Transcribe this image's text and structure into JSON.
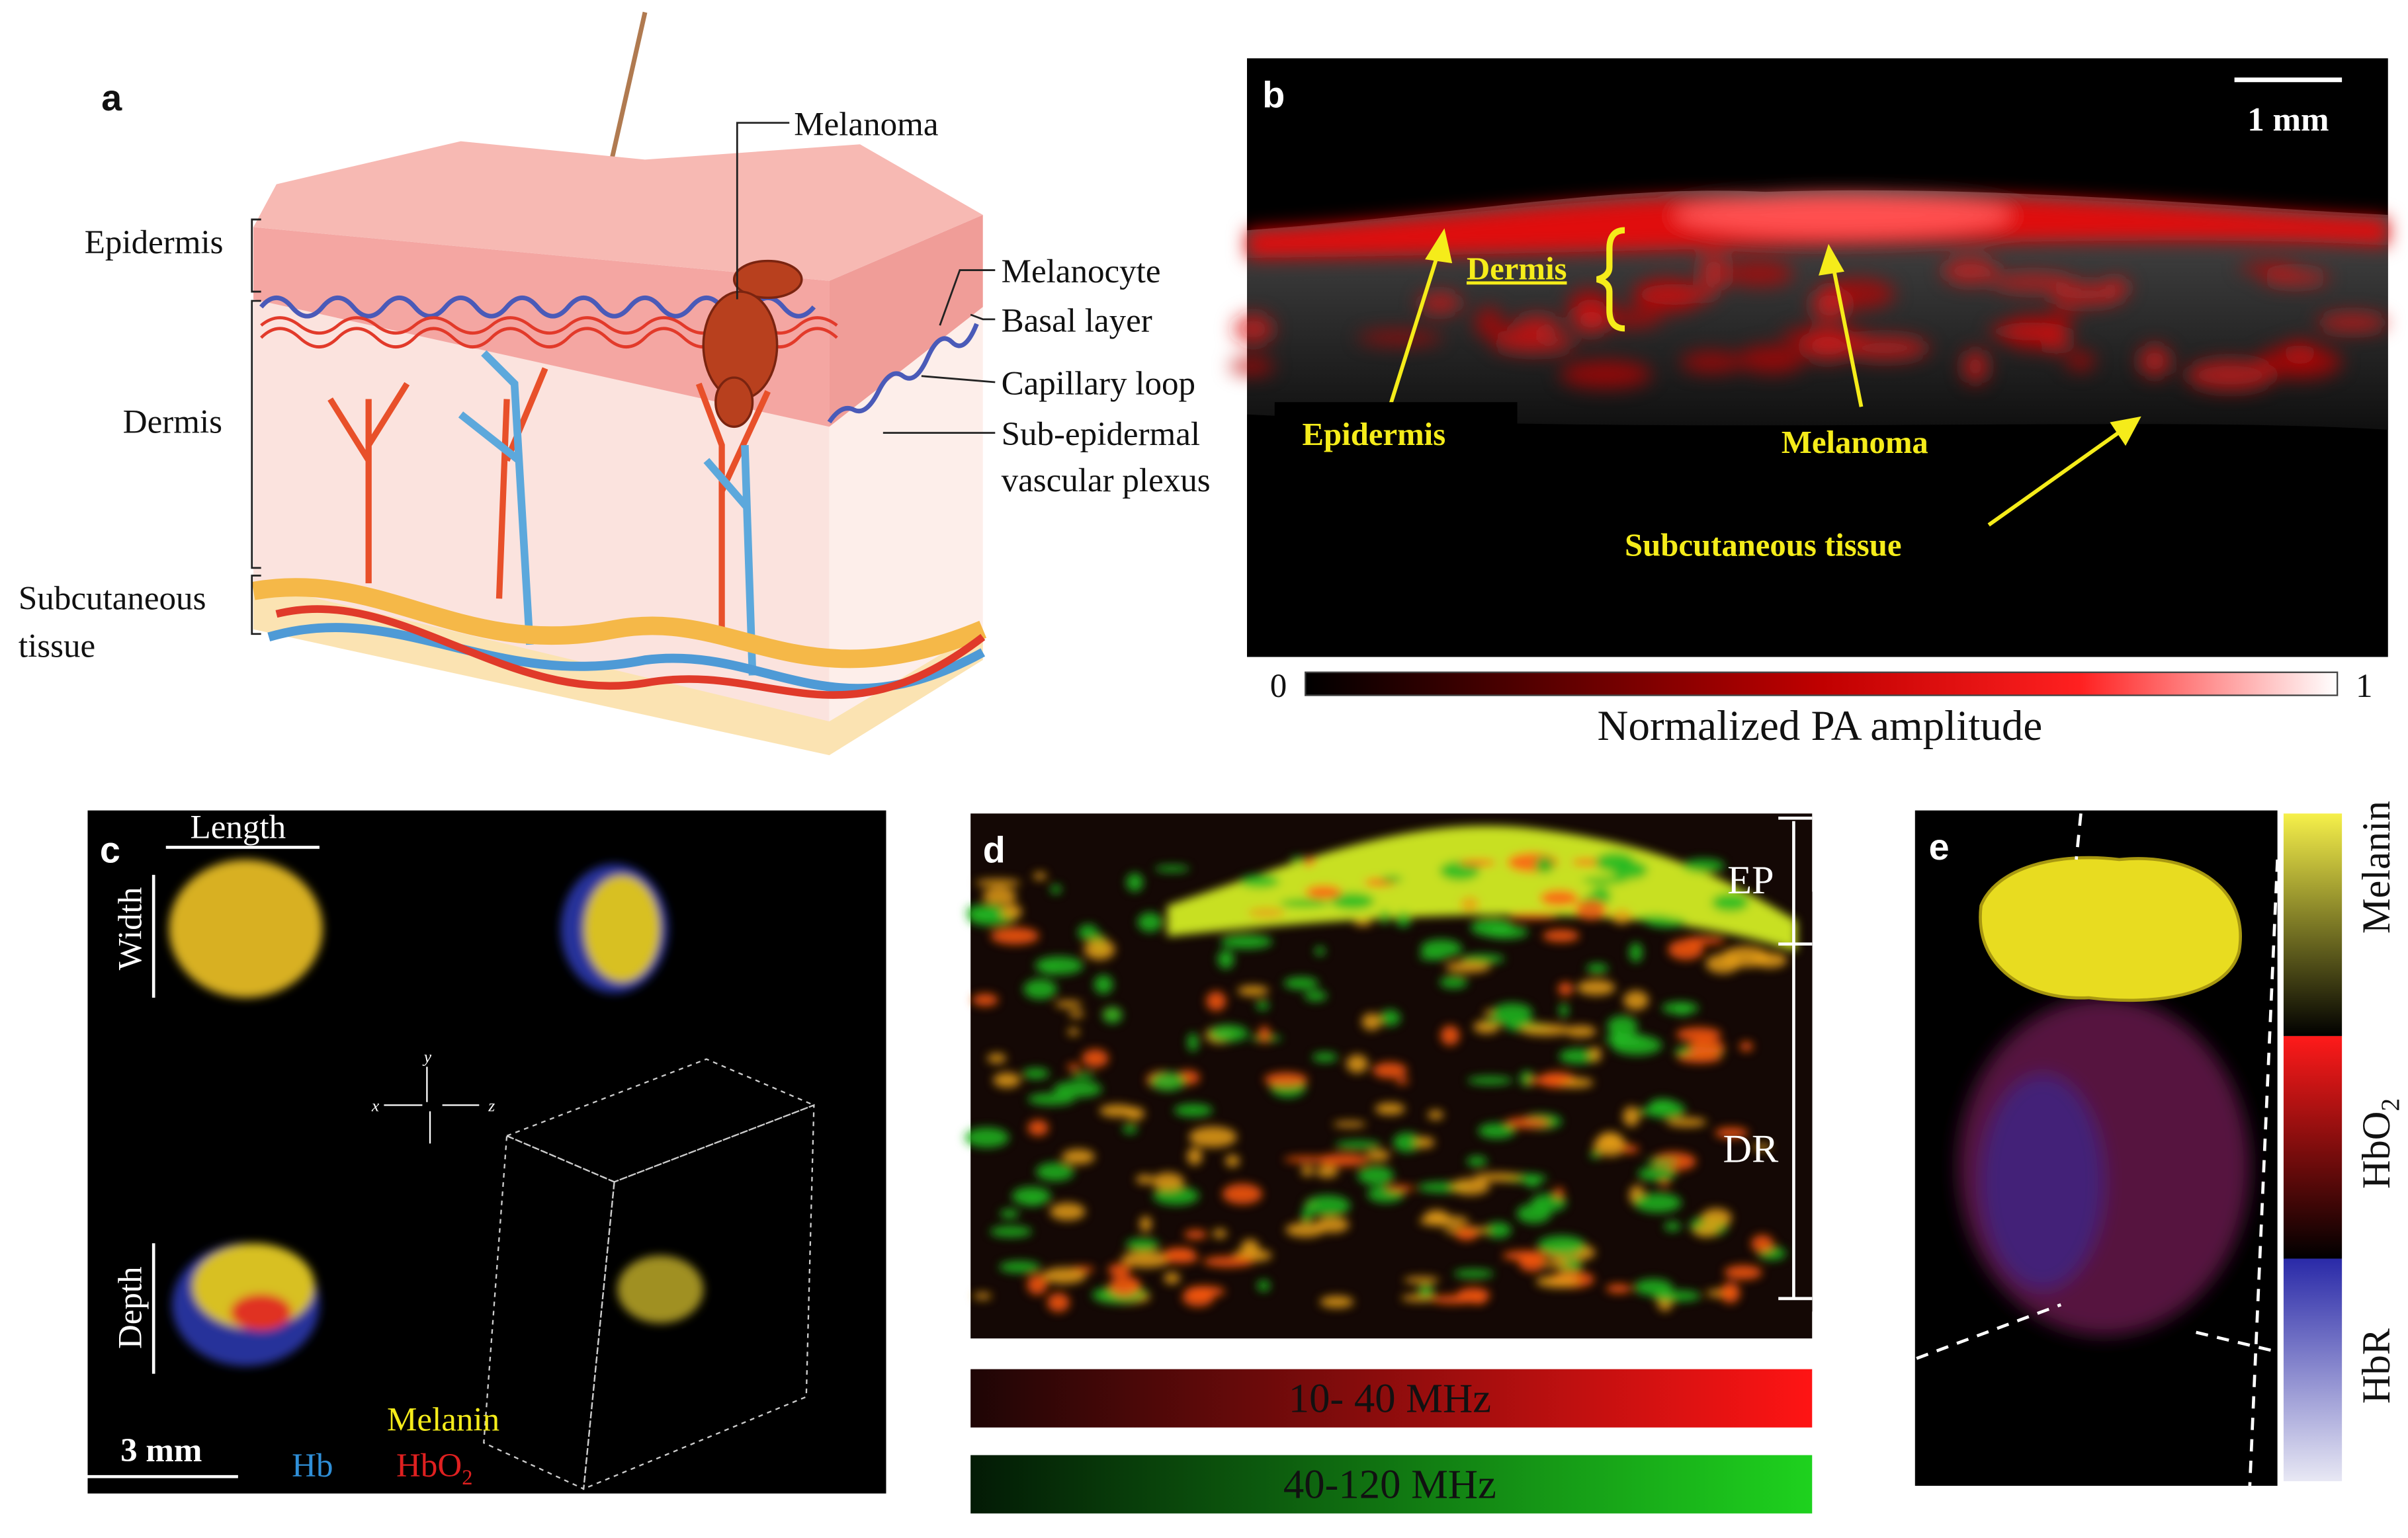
{
  "panels": {
    "a": {
      "letter": "a",
      "labels": {
        "melanoma": "Melanoma",
        "epidermis": "Epidermis",
        "melanocyte": "Melanocyte",
        "basal_layer": "Basal layer",
        "capillary_loop": "Capillary loop",
        "dermis": "Dermis",
        "sub_epidermal_1": "Sub-epidermal",
        "sub_epidermal_2": "vascular plexus",
        "subcutaneous_1": "Subcutaneous",
        "subcutaneous_2": "tissue"
      }
    },
    "b": {
      "letter": "b",
      "scale_bar": "1 mm",
      "labels": {
        "dermis": "Dermis",
        "epidermis": "Epidermis",
        "melanoma": "Melanoma",
        "subcutaneous": "Subcutaneous tissue"
      },
      "colorbar": {
        "min": "0",
        "max": "1",
        "title": "Normalized PA amplitude"
      }
    },
    "c": {
      "letter": "c",
      "length": "Length",
      "width": "Width",
      "depth": "Depth",
      "axes": {
        "x": "x",
        "y": "y",
        "z": "z"
      },
      "legend": {
        "melanin": "Melanin",
        "hb": "Hb",
        "hbo2_main": "HbO",
        "hbo2_sub": "2"
      },
      "scale_bar": "3 mm"
    },
    "d": {
      "letter": "d",
      "ep": "EP",
      "dr": "DR",
      "bar_low": "10- 40 MHz",
      "bar_high": "40-120 MHz"
    },
    "e": {
      "letter": "e",
      "colorbar": {
        "melanin": "Melanin",
        "hbo2_main": "HbO",
        "hbo2_sub": "2",
        "hbr": "HbR"
      }
    }
  }
}
